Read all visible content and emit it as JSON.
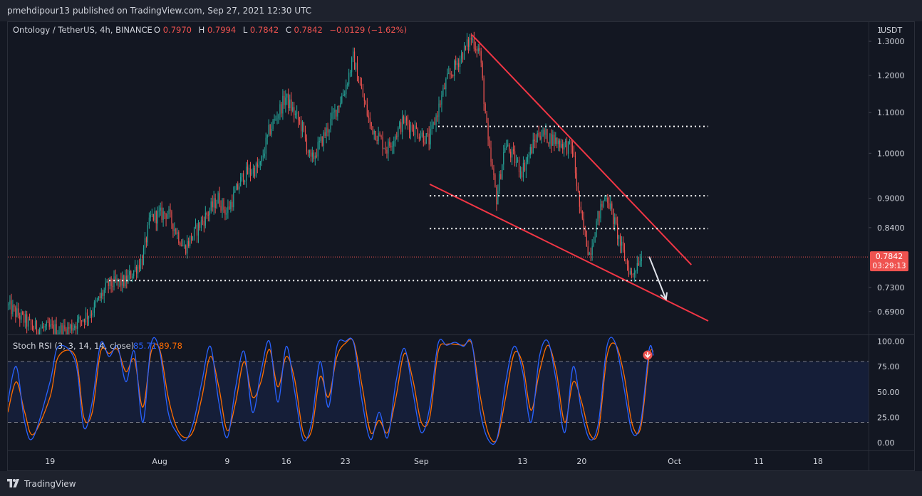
{
  "header": {
    "publisher_text": "pmehdipour13 published on TradingView.com, Sep 27, 2021 12:30 UTC"
  },
  "footer": {
    "brand": "TradingView"
  },
  "colors": {
    "background": "#131722",
    "panel": "#1e222d",
    "grid": "#2a2e39",
    "text": "#d1d4dc",
    "up": "#26a69a",
    "down": "#ef5350",
    "trend_line": "#f23645",
    "k_line": "#2962ff",
    "d_line": "#ff6d00"
  },
  "chart_data": [
    {
      "type": "candlestick",
      "legend": {
        "symbol": "Ontology / TetherUS, 4h, BINANCE",
        "o_label": "O",
        "o_value": "0.7970",
        "h_label": "H",
        "h_value": "0.7994",
        "l_label": "L",
        "l_value": "0.7842",
        "c_label": "C",
        "c_value": "0.7842",
        "change": "−0.0129 (−1.62%)"
      },
      "currency_button": "USDT",
      "scale_mode": "1",
      "y_scale": "log",
      "ylim": [
        0.655,
        1.36
      ],
      "y_ticks": [
        "1.3000",
        "1.2000",
        "1.1000",
        "1.0000",
        "0.9000",
        "0.8400",
        "0.7300",
        "0.6900"
      ],
      "x_ticks": [
        "19",
        "Aug",
        "9",
        "16",
        "23",
        "Sep",
        "13",
        "20",
        "Oct",
        "11",
        "18"
      ],
      "xlim": [
        "2021-07-14",
        "2021-10-24"
      ],
      "last_price": "0.7842",
      "countdown": "03:29:13",
      "price_path": [
        [
          "2021-07-14",
          0.7
        ],
        [
          "2021-07-17",
          0.665
        ],
        [
          "2021-07-21",
          0.66
        ],
        [
          "2021-07-24",
          0.69
        ],
        [
          "2021-07-26",
          0.735
        ],
        [
          "2021-07-28",
          0.74
        ],
        [
          "2021-07-30",
          0.78
        ],
        [
          "2021-07-31",
          0.86
        ],
        [
          "2021-08-02",
          0.87
        ],
        [
          "2021-08-04",
          0.8
        ],
        [
          "2021-08-06",
          0.85
        ],
        [
          "2021-08-08",
          0.9
        ],
        [
          "2021-08-09",
          0.87
        ],
        [
          "2021-08-11",
          0.95
        ],
        [
          "2021-08-13",
          0.97
        ],
        [
          "2021-08-14",
          1.05
        ],
        [
          "2021-08-16",
          1.14
        ],
        [
          "2021-08-18",
          1.06
        ],
        [
          "2021-08-19",
          0.98
        ],
        [
          "2021-08-21",
          1.06
        ],
        [
          "2021-08-23",
          1.16
        ],
        [
          "2021-08-24",
          1.25
        ],
        [
          "2021-08-26",
          1.07
        ],
        [
          "2021-08-28",
          1.01
        ],
        [
          "2021-08-30",
          1.08
        ],
        [
          "2021-09-02",
          1.03
        ],
        [
          "2021-09-04",
          1.18
        ],
        [
          "2021-09-07",
          1.31
        ],
        [
          "2021-09-08",
          1.27
        ],
        [
          "2021-09-09",
          1.02
        ],
        [
          "2021-09-10",
          0.9
        ],
        [
          "2021-09-11",
          1.02
        ],
        [
          "2021-09-13",
          0.96
        ],
        [
          "2021-09-15",
          1.05
        ],
        [
          "2021-09-17",
          1.03
        ],
        [
          "2021-09-19",
          1.01
        ],
        [
          "2021-09-20",
          0.86
        ],
        [
          "2021-09-21",
          0.79
        ],
        [
          "2021-09-22",
          0.86
        ],
        [
          "2021-09-23",
          0.91
        ],
        [
          "2021-09-25",
          0.79
        ],
        [
          "2021-09-26",
          0.75
        ],
        [
          "2021-09-27",
          0.785
        ]
      ],
      "annotations": [
        {
          "kind": "trendline",
          "from": [
            "2021-09-07",
            1.32
          ],
          "to": [
            "2021-10-03",
            0.77
          ]
        },
        {
          "kind": "trendline",
          "from": [
            "2021-09-02",
            0.93
          ],
          "to": [
            "2021-10-05",
            0.675
          ]
        },
        {
          "kind": "hline",
          "value": 1.065,
          "from": "2021-09-03",
          "to": "2021-10-05"
        },
        {
          "kind": "hline",
          "value": 0.905,
          "from": "2021-09-02",
          "to": "2021-10-05"
        },
        {
          "kind": "hline",
          "value": 0.838,
          "from": "2021-09-02",
          "to": "2021-10-05"
        },
        {
          "kind": "hline",
          "value": 0.742,
          "from": "2021-07-26",
          "to": "2021-10-05"
        },
        {
          "kind": "arrow",
          "from": [
            "2021-09-28",
            0.785
          ],
          "to": [
            "2021-09-30",
            0.71
          ]
        }
      ]
    },
    {
      "type": "line",
      "title": "Stoch RSI (3, 3, 14, 14, close)",
      "k_value": "85.71",
      "d_value": "89.78",
      "ylim": [
        -7,
        106
      ],
      "y_ticks": [
        "100.00",
        "75.00",
        "50.00",
        "25.00",
        "0.00"
      ],
      "band": [
        20,
        80
      ],
      "k_control_points": [
        [
          "2021-07-14",
          40
        ],
        [
          "2021-07-15",
          75
        ],
        [
          "2021-07-16",
          20
        ],
        [
          "2021-07-17",
          5
        ],
        [
          "2021-07-19",
          60
        ],
        [
          "2021-07-20",
          95
        ],
        [
          "2021-07-22",
          80
        ],
        [
          "2021-07-23",
          15
        ],
        [
          "2021-07-24",
          40
        ],
        [
          "2021-07-25",
          98
        ],
        [
          "2021-07-26",
          85
        ],
        [
          "2021-07-27",
          95
        ],
        [
          "2021-07-28",
          60
        ],
        [
          "2021-07-29",
          90
        ],
        [
          "2021-07-30",
          20
        ],
        [
          "2021-07-31",
          98
        ],
        [
          "2021-08-01",
          90
        ],
        [
          "2021-08-02",
          30
        ],
        [
          "2021-08-03",
          10
        ],
        [
          "2021-08-04",
          2
        ],
        [
          "2021-08-05",
          20
        ],
        [
          "2021-08-06",
          60
        ],
        [
          "2021-08-07",
          95
        ],
        [
          "2021-08-08",
          40
        ],
        [
          "2021-08-09",
          5
        ],
        [
          "2021-08-10",
          55
        ],
        [
          "2021-08-11",
          90
        ],
        [
          "2021-08-12",
          30
        ],
        [
          "2021-08-13",
          70
        ],
        [
          "2021-08-14",
          100
        ],
        [
          "2021-08-15",
          40
        ],
        [
          "2021-08-16",
          95
        ],
        [
          "2021-08-17",
          50
        ],
        [
          "2021-08-18",
          3
        ],
        [
          "2021-08-19",
          20
        ],
        [
          "2021-08-20",
          80
        ],
        [
          "2021-08-21",
          35
        ],
        [
          "2021-08-22",
          95
        ],
        [
          "2021-08-23",
          100
        ],
        [
          "2021-08-24",
          98
        ],
        [
          "2021-08-25",
          40
        ],
        [
          "2021-08-26",
          3
        ],
        [
          "2021-08-27",
          30
        ],
        [
          "2021-08-28",
          5
        ],
        [
          "2021-08-29",
          60
        ],
        [
          "2021-08-30",
          93
        ],
        [
          "2021-08-31",
          50
        ],
        [
          "2021-09-01",
          10
        ],
        [
          "2021-09-02",
          35
        ],
        [
          "2021-09-03",
          98
        ],
        [
          "2021-09-04",
          96
        ],
        [
          "2021-09-05",
          99
        ],
        [
          "2021-09-06",
          95
        ],
        [
          "2021-09-07",
          98
        ],
        [
          "2021-09-08",
          30
        ],
        [
          "2021-09-09",
          2
        ],
        [
          "2021-09-10",
          5
        ],
        [
          "2021-09-11",
          60
        ],
        [
          "2021-09-12",
          95
        ],
        [
          "2021-09-13",
          70
        ],
        [
          "2021-09-14",
          20
        ],
        [
          "2021-09-15",
          85
        ],
        [
          "2021-09-16",
          100
        ],
        [
          "2021-09-17",
          60
        ],
        [
          "2021-09-18",
          10
        ],
        [
          "2021-09-19",
          75
        ],
        [
          "2021-09-20",
          30
        ],
        [
          "2021-09-21",
          3
        ],
        [
          "2021-09-22",
          20
        ],
        [
          "2021-09-23",
          95
        ],
        [
          "2021-09-24",
          98
        ],
        [
          "2021-09-25",
          55
        ],
        [
          "2021-09-26",
          10
        ],
        [
          "2021-09-27",
          20
        ],
        [
          "2021-09-28",
          92
        ],
        [
          "2021-09-28T12",
          86
        ]
      ],
      "d_control_points": [
        [
          "2021-07-14",
          30
        ],
        [
          "2021-07-15",
          60
        ],
        [
          "2021-07-16",
          30
        ],
        [
          "2021-07-17",
          8
        ],
        [
          "2021-07-19",
          45
        ],
        [
          "2021-07-20",
          85
        ],
        [
          "2021-07-22",
          85
        ],
        [
          "2021-07-23",
          25
        ],
        [
          "2021-07-24",
          30
        ],
        [
          "2021-07-25",
          90
        ],
        [
          "2021-07-26",
          88
        ],
        [
          "2021-07-27",
          92
        ],
        [
          "2021-07-28",
          70
        ],
        [
          "2021-07-29",
          82
        ],
        [
          "2021-07-30",
          35
        ],
        [
          "2021-07-31",
          90
        ],
        [
          "2021-08-01",
          92
        ],
        [
          "2021-08-02",
          45
        ],
        [
          "2021-08-03",
          15
        ],
        [
          "2021-08-04",
          5
        ],
        [
          "2021-08-05",
          12
        ],
        [
          "2021-08-06",
          45
        ],
        [
          "2021-08-07",
          85
        ],
        [
          "2021-08-08",
          55
        ],
        [
          "2021-08-09",
          12
        ],
        [
          "2021-08-10",
          40
        ],
        [
          "2021-08-11",
          80
        ],
        [
          "2021-08-12",
          45
        ],
        [
          "2021-08-13",
          60
        ],
        [
          "2021-08-14",
          92
        ],
        [
          "2021-08-15",
          55
        ],
        [
          "2021-08-16",
          85
        ],
        [
          "2021-08-17",
          62
        ],
        [
          "2021-08-18",
          10
        ],
        [
          "2021-08-19",
          12
        ],
        [
          "2021-08-20",
          65
        ],
        [
          "2021-08-21",
          45
        ],
        [
          "2021-08-22",
          85
        ],
        [
          "2021-08-23",
          98
        ],
        [
          "2021-08-24",
          99
        ],
        [
          "2021-08-25",
          55
        ],
        [
          "2021-08-26",
          10
        ],
        [
          "2021-08-27",
          22
        ],
        [
          "2021-08-28",
          10
        ],
        [
          "2021-08-29",
          45
        ],
        [
          "2021-08-30",
          88
        ],
        [
          "2021-08-31",
          62
        ],
        [
          "2021-09-01",
          20
        ],
        [
          "2021-09-02",
          25
        ],
        [
          "2021-09-03",
          90
        ],
        [
          "2021-09-04",
          97
        ],
        [
          "2021-09-05",
          97
        ],
        [
          "2021-09-06",
          96
        ],
        [
          "2021-09-07",
          97
        ],
        [
          "2021-09-08",
          45
        ],
        [
          "2021-09-09",
          8
        ],
        [
          "2021-09-10",
          4
        ],
        [
          "2021-09-11",
          45
        ],
        [
          "2021-09-12",
          88
        ],
        [
          "2021-09-13",
          78
        ],
        [
          "2021-09-14",
          32
        ],
        [
          "2021-09-15",
          70
        ],
        [
          "2021-09-16",
          96
        ],
        [
          "2021-09-17",
          70
        ],
        [
          "2021-09-18",
          20
        ],
        [
          "2021-09-19",
          60
        ],
        [
          "2021-09-20",
          40
        ],
        [
          "2021-09-21",
          8
        ],
        [
          "2021-09-22",
          12
        ],
        [
          "2021-09-23",
          85
        ],
        [
          "2021-09-24",
          97
        ],
        [
          "2021-09-25",
          68
        ],
        [
          "2021-09-26",
          18
        ],
        [
          "2021-09-27",
          15
        ],
        [
          "2021-09-28",
          85
        ],
        [
          "2021-09-28T12",
          90
        ]
      ]
    }
  ]
}
